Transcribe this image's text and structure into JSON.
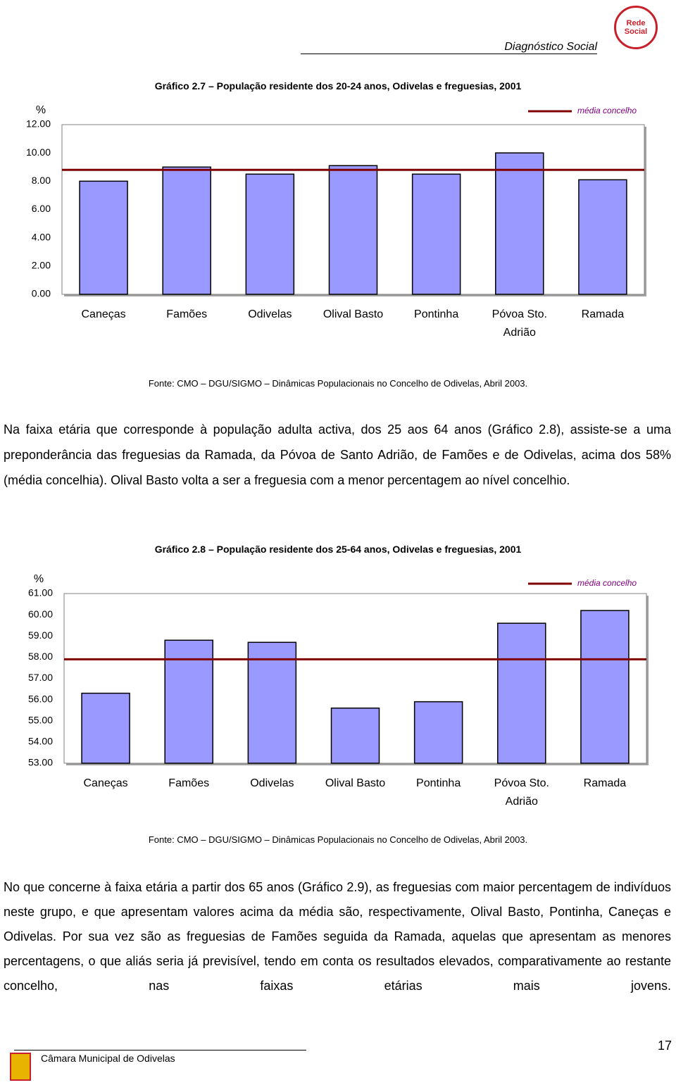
{
  "header": {
    "title": "Diagnóstico Social",
    "logo_text": "Rede Social"
  },
  "chart_data": [
    {
      "type": "bar",
      "title": "Gráfico 2.7 – População residente dos 20-24 anos, Odivelas e freguesias, 2001",
      "y_label": "%",
      "categories": [
        "Caneças",
        "Famões",
        "Odivelas",
        "Olival Basto",
        "Pontinha",
        "Póvoa Sto. Adrião",
        "Ramada"
      ],
      "values": [
        8.0,
        9.0,
        8.5,
        9.1,
        8.5,
        10.0,
        8.1
      ],
      "color": "#9999ff",
      "reference": {
        "name": "média concelho",
        "value": 8.8,
        "color": "#800000"
      },
      "ylim": [
        0,
        12
      ],
      "yticks": [
        {
          "value": 0,
          "label": "0.00"
        },
        {
          "value": 2,
          "label": "2.00"
        },
        {
          "value": 4,
          "label": "4.00"
        },
        {
          "value": 6,
          "label": "6.00"
        },
        {
          "value": 8,
          "label": "8.00"
        },
        {
          "value": 10,
          "label": "10.00"
        },
        {
          "value": 12,
          "label": "12.00"
        }
      ],
      "source": "Fonte: CMO – DGU/SIGMO – Dinâmicas Populacionais no Concelho de Odivelas, Abril 2003."
    },
    {
      "type": "bar",
      "title": "Gráfico 2.8 – População residente dos 25-64 anos, Odivelas e freguesias, 2001",
      "y_label": "%",
      "categories": [
        "Caneças",
        "Famões",
        "Odivelas",
        "Olival Basto",
        "Pontinha",
        "Póvoa Sto. Adrião",
        "Ramada"
      ],
      "values": [
        56.3,
        58.8,
        58.7,
        55.6,
        55.9,
        59.6,
        60.2
      ],
      "color": "#9999ff",
      "reference": {
        "name": "média concelho",
        "value": 57.9,
        "color": "#800000"
      },
      "ylim": [
        53,
        61
      ],
      "yticks": [
        {
          "value": 53,
          "label": "53.00"
        },
        {
          "value": 54,
          "label": "54.00"
        },
        {
          "value": 55,
          "label": "55.00"
        },
        {
          "value": 56,
          "label": "56.00"
        },
        {
          "value": 57,
          "label": "57.00"
        },
        {
          "value": 58,
          "label": "58.00"
        },
        {
          "value": 59,
          "label": "59.00"
        },
        {
          "value": 60,
          "label": "60.00"
        },
        {
          "value": 61,
          "label": "61.00"
        }
      ],
      "source": "Fonte: CMO – DGU/SIGMO – Dinâmicas Populacionais no Concelho de Odivelas, Abril 2003."
    }
  ],
  "paragraphs": [
    "Na faixa etária que corresponde à população adulta activa,  dos 25 aos 64 anos (Gráfico 2.8), assiste-se a uma preponderância das freguesias da Ramada, da Póvoa de Santo Adrião, de Famões e de Odivelas, acima dos 58% (média concelhia). Olival Basto volta a ser a freguesia com a menor percentagem ao nível concelhio.",
    "No que concerne à faixa etária a partir dos 65 anos (Gráfico 2.9), as freguesias com maior percentagem de indivíduos neste grupo, e que apresentam valores acima da média são, respectivamente, Olival Basto, Pontinha, Caneças e Odivelas. Por sua vez são as freguesias de Famões seguida da Ramada, aquelas que apresentam as menores percentagens, o que aliás seria já previsível, tendo em conta os resultados elevados, comparativamente ao restante concelho, nas faixas etárias mais jovens."
  ],
  "footer": {
    "organization": "Câmara Municipal de Odivelas",
    "page_number": "17"
  }
}
